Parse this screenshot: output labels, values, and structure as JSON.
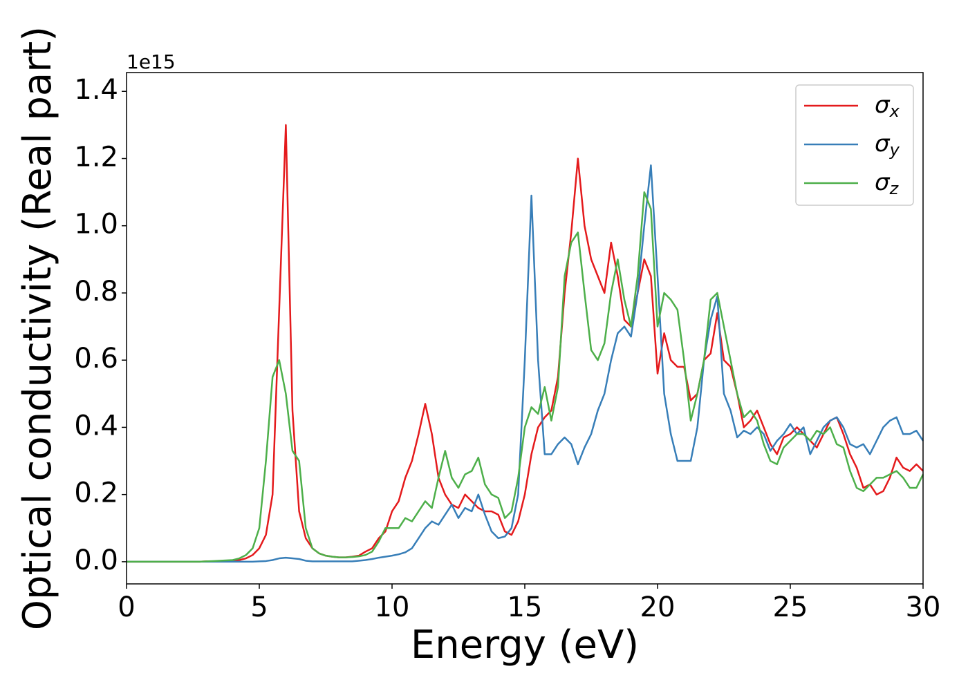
{
  "chart_data": {
    "type": "line",
    "x_label": "Energy (eV)",
    "y_label": "Optical conductivity (Real part)",
    "y_offset_label": "1e15",
    "x": [
      0,
      0.25,
      0.5,
      0.75,
      1,
      1.25,
      1.5,
      1.75,
      2,
      2.25,
      2.5,
      2.75,
      3,
      3.25,
      3.5,
      3.75,
      4,
      4.25,
      4.5,
      4.75,
      5,
      5.25,
      5.5,
      5.75,
      6,
      6.25,
      6.5,
      6.75,
      7,
      7.25,
      7.5,
      7.75,
      8,
      8.25,
      8.5,
      8.75,
      9,
      9.25,
      9.5,
      9.75,
      10,
      10.25,
      10.5,
      10.75,
      11,
      11.25,
      11.5,
      11.75,
      12,
      12.25,
      12.5,
      12.75,
      13,
      13.25,
      13.5,
      13.75,
      14,
      14.25,
      14.5,
      14.75,
      15,
      15.25,
      15.5,
      15.75,
      16,
      16.25,
      16.5,
      16.75,
      17,
      17.25,
      17.5,
      17.75,
      18,
      18.25,
      18.5,
      18.75,
      19,
      19.25,
      19.5,
      19.75,
      20,
      20.25,
      20.5,
      20.75,
      21,
      21.25,
      21.5,
      21.75,
      22,
      22.25,
      22.5,
      22.75,
      23,
      23.25,
      23.5,
      23.75,
      24,
      24.25,
      24.5,
      24.75,
      25,
      25.25,
      25.5,
      25.75,
      26,
      26.25,
      26.5,
      26.75,
      27,
      27.25,
      27.5,
      27.75,
      28,
      28.25,
      28.5,
      28.75,
      29,
      29.25,
      29.5,
      29.75,
      30
    ],
    "series": [
      {
        "name": "σx",
        "color": "#e41a1c",
        "values": [
          0,
          0,
          0,
          0,
          0,
          0,
          0,
          0,
          0,
          0,
          0,
          0,
          0.001,
          0.001,
          0.002,
          0.002,
          0.003,
          0.005,
          0.01,
          0.02,
          0.04,
          0.08,
          0.2,
          0.75,
          1.3,
          0.45,
          0.15,
          0.07,
          0.04,
          0.025,
          0.018,
          0.015,
          0.013,
          0.013,
          0.015,
          0.018,
          0.03,
          0.04,
          0.07,
          0.09,
          0.15,
          0.18,
          0.25,
          0.3,
          0.38,
          0.47,
          0.38,
          0.25,
          0.2,
          0.17,
          0.16,
          0.2,
          0.18,
          0.16,
          0.15,
          0.15,
          0.14,
          0.09,
          0.08,
          0.12,
          0.2,
          0.32,
          0.4,
          0.43,
          0.45,
          0.55,
          0.8,
          0.98,
          1.2,
          1.0,
          0.9,
          0.85,
          0.8,
          0.95,
          0.85,
          0.72,
          0.7,
          0.8,
          0.9,
          0.85,
          0.56,
          0.68,
          0.6,
          0.58,
          0.58,
          0.48,
          0.5,
          0.6,
          0.62,
          0.74,
          0.6,
          0.58,
          0.5,
          0.4,
          0.42,
          0.45,
          0.4,
          0.35,
          0.32,
          0.37,
          0.38,
          0.4,
          0.38,
          0.36,
          0.34,
          0.38,
          0.42,
          0.43,
          0.38,
          0.32,
          0.28,
          0.22,
          0.23,
          0.2,
          0.21,
          0.25,
          0.31,
          0.28,
          0.27,
          0.29,
          0.27
        ]
      },
      {
        "name": "σy",
        "color": "#377eb8",
        "values": [
          0,
          0,
          0,
          0,
          0,
          0,
          0,
          0,
          0,
          0,
          0,
          0,
          0,
          0,
          0,
          0,
          0,
          0,
          0,
          0,
          0.001,
          0.002,
          0.005,
          0.01,
          0.012,
          0.01,
          0.008,
          0.003,
          0.001,
          0.001,
          0.001,
          0.001,
          0.001,
          0.001,
          0.001,
          0.003,
          0.005,
          0.008,
          0.012,
          0.015,
          0.018,
          0.022,
          0.028,
          0.04,
          0.07,
          0.1,
          0.12,
          0.11,
          0.14,
          0.17,
          0.13,
          0.16,
          0.15,
          0.2,
          0.14,
          0.09,
          0.07,
          0.075,
          0.1,
          0.2,
          0.6,
          1.09,
          0.6,
          0.32,
          0.32,
          0.35,
          0.37,
          0.35,
          0.29,
          0.34,
          0.38,
          0.45,
          0.5,
          0.6,
          0.68,
          0.7,
          0.67,
          0.8,
          1.0,
          1.18,
          0.85,
          0.5,
          0.38,
          0.3,
          0.3,
          0.3,
          0.4,
          0.6,
          0.72,
          0.79,
          0.5,
          0.45,
          0.37,
          0.39,
          0.38,
          0.4,
          0.38,
          0.33,
          0.36,
          0.38,
          0.41,
          0.38,
          0.4,
          0.32,
          0.36,
          0.4,
          0.42,
          0.43,
          0.4,
          0.35,
          0.34,
          0.35,
          0.32,
          0.36,
          0.4,
          0.42,
          0.43,
          0.38,
          0.38,
          0.39,
          0.36
        ]
      },
      {
        "name": "σz",
        "color": "#4daf4a",
        "values": [
          0,
          0,
          0,
          0,
          0,
          0,
          0,
          0,
          0,
          0,
          0,
          0,
          0.001,
          0.002,
          0.003,
          0.004,
          0.005,
          0.01,
          0.02,
          0.04,
          0.1,
          0.3,
          0.55,
          0.6,
          0.5,
          0.33,
          0.3,
          0.1,
          0.04,
          0.025,
          0.018,
          0.015,
          0.013,
          0.013,
          0.014,
          0.016,
          0.02,
          0.03,
          0.06,
          0.1,
          0.1,
          0.1,
          0.13,
          0.12,
          0.15,
          0.18,
          0.16,
          0.25,
          0.33,
          0.25,
          0.22,
          0.26,
          0.27,
          0.31,
          0.23,
          0.2,
          0.19,
          0.13,
          0.15,
          0.25,
          0.4,
          0.46,
          0.44,
          0.52,
          0.42,
          0.52,
          0.85,
          0.95,
          0.98,
          0.8,
          0.63,
          0.6,
          0.65,
          0.8,
          0.9,
          0.78,
          0.7,
          0.85,
          1.1,
          1.05,
          0.7,
          0.8,
          0.78,
          0.75,
          0.6,
          0.42,
          0.5,
          0.6,
          0.78,
          0.8,
          0.7,
          0.6,
          0.5,
          0.43,
          0.45,
          0.42,
          0.35,
          0.3,
          0.29,
          0.34,
          0.36,
          0.38,
          0.38,
          0.36,
          0.39,
          0.38,
          0.4,
          0.35,
          0.34,
          0.27,
          0.22,
          0.21,
          0.23,
          0.25,
          0.25,
          0.26,
          0.27,
          0.25,
          0.22,
          0.22,
          0.26
        ]
      }
    ],
    "xlim": [
      0,
      30
    ],
    "xticks": [
      0,
      5,
      10,
      15,
      20,
      25,
      30
    ],
    "ylim": [
      -0.066,
      1.456
    ],
    "yticks": [
      {
        "value": 0,
        "label": "0.0"
      },
      0.2,
      0.4,
      0.6,
      0.8,
      {
        "value": 1,
        "label": "1.0"
      },
      1.2,
      1.4
    ],
    "grid": false,
    "legend": "upper right"
  }
}
